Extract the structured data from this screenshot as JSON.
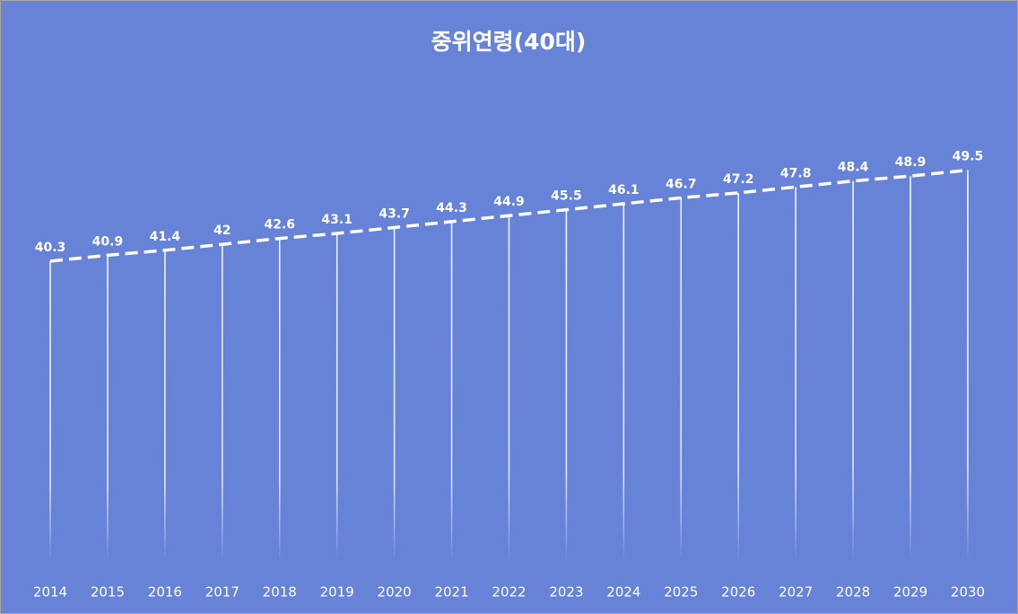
{
  "chart_data": {
    "type": "line",
    "title": "중위연령(40대)",
    "categories": [
      "2014",
      "2015",
      "2016",
      "2017",
      "2018",
      "2019",
      "2020",
      "2021",
      "2022",
      "2023",
      "2024",
      "2025",
      "2026",
      "2027",
      "2028",
      "2029",
      "2030"
    ],
    "values": [
      40.3,
      40.9,
      41.4,
      42,
      42.6,
      43.1,
      43.7,
      44.3,
      44.9,
      45.5,
      46.1,
      46.7,
      47.2,
      47.8,
      48.4,
      48.9,
      49.5
    ],
    "color": "#ffffff",
    "ylim": [
      10,
      50
    ],
    "drop_lines": true,
    "dashed": true
  }
}
